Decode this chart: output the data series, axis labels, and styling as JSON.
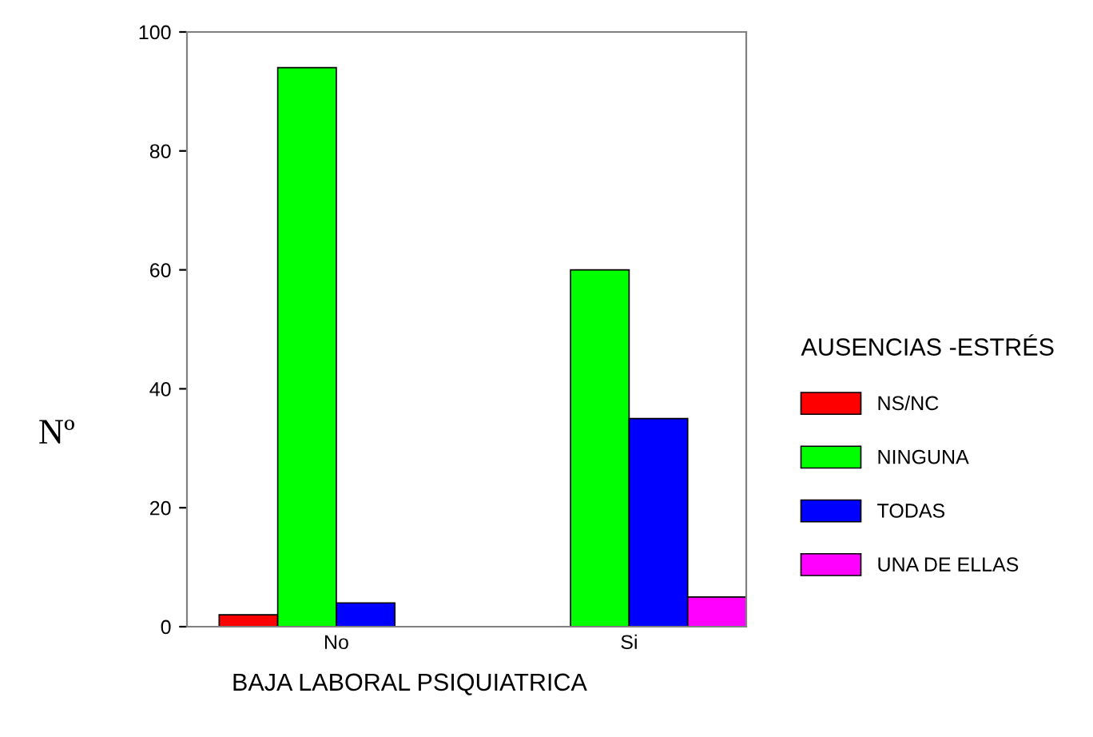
{
  "chart_data": {
    "type": "bar",
    "xlabel": "BAJA LABORAL PSIQUIATRICA",
    "ylabel": "Nº",
    "legend_title": "AUSENCIAS -ESTRÉS",
    "categories": [
      "No",
      "Si"
    ],
    "series": [
      {
        "name": "NS/NC",
        "color": "#ff0000",
        "values": [
          2,
          0
        ]
      },
      {
        "name": "NINGUNA",
        "color": "#00ff00",
        "values": [
          94,
          60
        ]
      },
      {
        "name": "TODAS",
        "color": "#0000ff",
        "values": [
          4,
          35
        ]
      },
      {
        "name": "UNA DE ELLAS",
        "color": "#ff00ff",
        "values": [
          0,
          5
        ]
      }
    ],
    "ylim": [
      0,
      100
    ],
    "yticks": [
      0,
      20,
      40,
      60,
      80,
      100
    ],
    "grid": false,
    "legend": "right"
  }
}
